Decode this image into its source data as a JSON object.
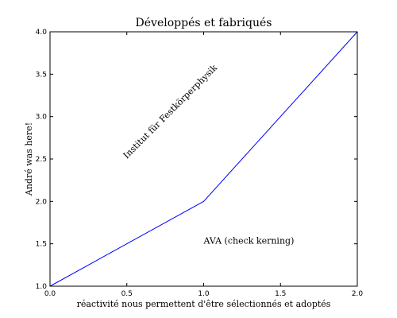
{
  "chart_data": {
    "type": "line",
    "title": "Développés et fabriqués",
    "xlabel": "réactivité nous permettent d'être sélectionnés et adoptés",
    "ylabel": "André was here!",
    "xlim": [
      0.0,
      2.0
    ],
    "ylim": [
      1.0,
      4.0
    ],
    "xticks": [
      "0.0",
      "0.5",
      "1.0",
      "1.5",
      "2.0"
    ],
    "yticks": [
      "1.0",
      "1.5",
      "2.0",
      "2.5",
      "3.0",
      "3.5",
      "4.0"
    ],
    "series": [
      {
        "x": [
          0.0,
          1.0,
          2.0
        ],
        "y": [
          1.0,
          2.0,
          4.0
        ],
        "color": "#0000ff"
      }
    ],
    "annotations": [
      {
        "text": "Institut für Festkörperphysik",
        "x": 0.5,
        "y": 2.5,
        "rotation": 45
      },
      {
        "text": "AVA (check kerning)",
        "x": 1.0,
        "y": 1.5,
        "rotation": 0
      }
    ],
    "grid": false
  }
}
